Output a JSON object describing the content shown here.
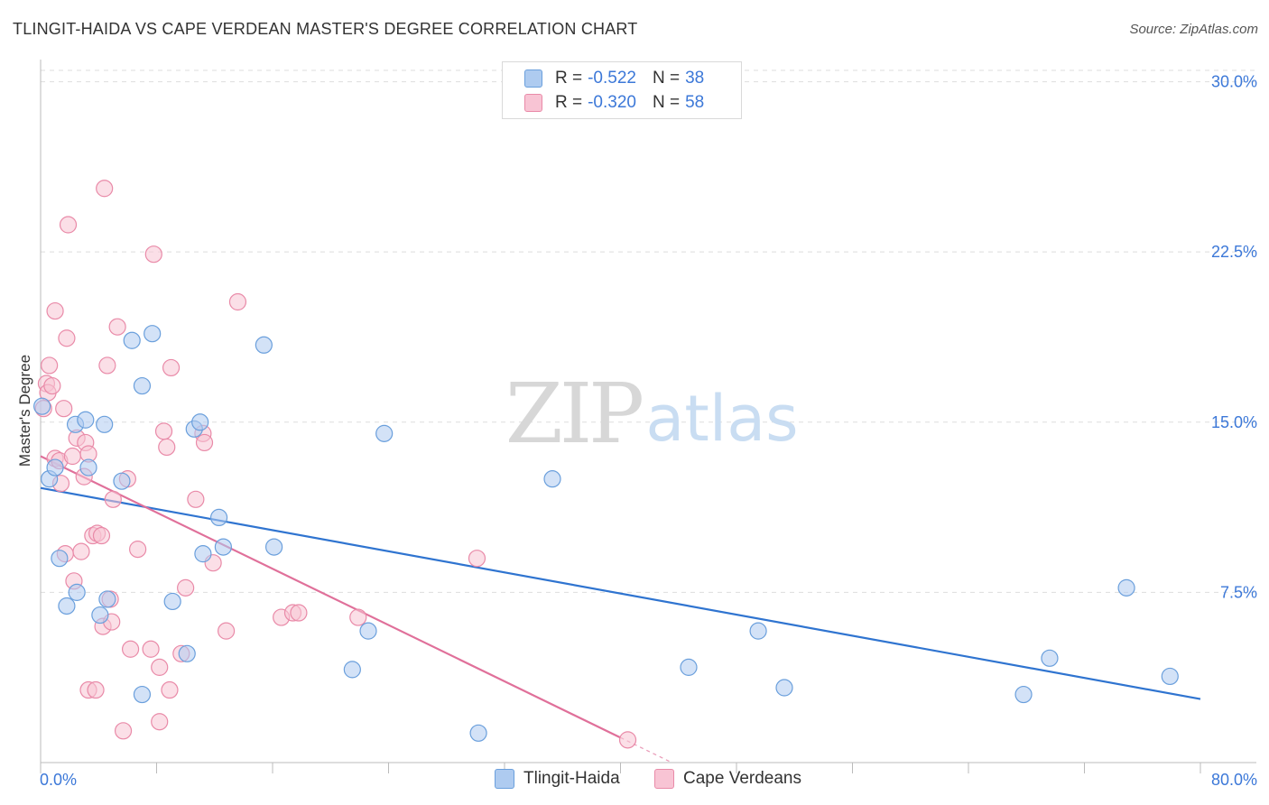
{
  "header": {
    "title": "TLINGIT-HAIDA VS CAPE VERDEAN MASTER'S DEGREE CORRELATION CHART",
    "source": "Source: ZipAtlas.com"
  },
  "watermark": {
    "zip": "ZIP",
    "atlas": "atlas"
  },
  "legend_top": {
    "rows": [
      {
        "r_label": "R =",
        "r_value": "-0.522",
        "n_label": "N =",
        "n_value": "38"
      },
      {
        "r_label": "R =",
        "r_value": "-0.320",
        "n_label": "N =",
        "n_value": "58"
      }
    ]
  },
  "legend_bottom": {
    "items": [
      {
        "label": "Tlingit-Haida"
      },
      {
        "label": "Cape Verdeans"
      }
    ]
  },
  "colors": {
    "blue_fill": "#aecbf0",
    "blue_stroke": "#6a9fdc",
    "blue_line": "#2f74d0",
    "pink_fill": "#f8c4d4",
    "pink_stroke": "#e98aa8",
    "pink_line": "#e0709a",
    "tick_label": "#3c78d8",
    "grid": "#dddddd"
  },
  "chart_data": {
    "type": "scatter",
    "title": "TLINGIT-HAIDA VS CAPE VERDEAN MASTER'S DEGREE CORRELATION CHART",
    "xlabel": "",
    "ylabel": "Master's Degree",
    "xlim": [
      0,
      80
    ],
    "ylim": [
      0,
      30.5
    ],
    "x_tick_labels": [
      "0.0%",
      "80.0%"
    ],
    "y_ticks": [
      7.5,
      15.0,
      22.5,
      30.0
    ],
    "y_tick_labels": [
      "7.5%",
      "15.0%",
      "22.5%",
      "30.0%"
    ],
    "grid": true,
    "legend_position": "top-center",
    "series": [
      {
        "name": "Tlingit-Haida",
        "color": "#aecbf0",
        "points": [
          [
            0.1,
            15.7
          ],
          [
            0.6,
            12.5
          ],
          [
            1.0,
            13.0
          ],
          [
            1.3,
            9.0
          ],
          [
            1.8,
            6.9
          ],
          [
            2.4,
            14.9
          ],
          [
            2.5,
            7.5
          ],
          [
            3.1,
            15.1
          ],
          [
            3.3,
            13.0
          ],
          [
            4.1,
            6.5
          ],
          [
            4.4,
            14.9
          ],
          [
            4.6,
            7.2
          ],
          [
            5.6,
            12.4
          ],
          [
            6.3,
            18.6
          ],
          [
            7.0,
            3.0
          ],
          [
            7.0,
            16.6
          ],
          [
            7.7,
            18.9
          ],
          [
            9.1,
            7.1
          ],
          [
            10.1,
            4.8
          ],
          [
            10.6,
            14.7
          ],
          [
            11.0,
            15.0
          ],
          [
            11.2,
            9.2
          ],
          [
            12.3,
            10.8
          ],
          [
            12.6,
            9.5
          ],
          [
            15.4,
            18.4
          ],
          [
            16.1,
            9.5
          ],
          [
            21.5,
            4.1
          ],
          [
            22.6,
            5.8
          ],
          [
            23.7,
            14.5
          ],
          [
            30.2,
            1.3
          ],
          [
            35.3,
            12.5
          ],
          [
            44.7,
            4.2
          ],
          [
            49.5,
            5.8
          ],
          [
            51.3,
            3.3
          ],
          [
            67.8,
            3.0
          ],
          [
            69.6,
            4.6
          ],
          [
            74.9,
            7.7
          ],
          [
            77.9,
            3.8
          ]
        ]
      },
      {
        "name": "Cape Verdeans",
        "color": "#f8c4d4",
        "points": [
          [
            0.2,
            15.6
          ],
          [
            0.4,
            16.7
          ],
          [
            0.5,
            16.3
          ],
          [
            0.6,
            17.5
          ],
          [
            0.8,
            16.6
          ],
          [
            1.0,
            13.4
          ],
          [
            1.0,
            19.9
          ],
          [
            1.3,
            13.3
          ],
          [
            1.4,
            12.3
          ],
          [
            1.6,
            15.6
          ],
          [
            1.7,
            9.2
          ],
          [
            1.8,
            18.7
          ],
          [
            1.9,
            23.7
          ],
          [
            2.2,
            13.5
          ],
          [
            2.3,
            8.0
          ],
          [
            2.5,
            14.3
          ],
          [
            2.8,
            9.3
          ],
          [
            3.0,
            12.6
          ],
          [
            3.1,
            14.1
          ],
          [
            3.3,
            3.2
          ],
          [
            3.3,
            13.6
          ],
          [
            3.6,
            10.0
          ],
          [
            3.8,
            3.2
          ],
          [
            3.9,
            10.1
          ],
          [
            4.2,
            10.0
          ],
          [
            4.3,
            6.0
          ],
          [
            4.4,
            25.3
          ],
          [
            4.6,
            17.5
          ],
          [
            4.8,
            7.2
          ],
          [
            4.9,
            6.2
          ],
          [
            5.0,
            11.6
          ],
          [
            5.3,
            19.2
          ],
          [
            5.7,
            1.4
          ],
          [
            6.0,
            12.5
          ],
          [
            6.2,
            5.0
          ],
          [
            6.7,
            9.4
          ],
          [
            7.6,
            5.0
          ],
          [
            7.8,
            22.4
          ],
          [
            8.2,
            1.8
          ],
          [
            8.2,
            4.2
          ],
          [
            8.5,
            14.6
          ],
          [
            8.7,
            13.9
          ],
          [
            8.9,
            3.2
          ],
          [
            9.0,
            17.4
          ],
          [
            9.7,
            4.8
          ],
          [
            10.0,
            7.7
          ],
          [
            10.7,
            11.6
          ],
          [
            11.2,
            14.5
          ],
          [
            11.3,
            14.1
          ],
          [
            11.9,
            8.8
          ],
          [
            12.8,
            5.8
          ],
          [
            13.6,
            20.3
          ],
          [
            16.6,
            6.4
          ],
          [
            17.4,
            6.6
          ],
          [
            17.8,
            6.6
          ],
          [
            21.9,
            6.4
          ],
          [
            30.1,
            9.0
          ],
          [
            40.5,
            1.0
          ]
        ]
      }
    ],
    "trendlines": [
      {
        "series": "Tlingit-Haida",
        "x": [
          0,
          80
        ],
        "y": [
          12.1,
          2.8
        ],
        "dashed_x": []
      },
      {
        "series": "Cape Verdeans",
        "x": [
          0,
          40
        ],
        "y": [
          13.5,
          1.1
        ],
        "dashed_x": [
          40,
          43.5
        ]
      }
    ]
  }
}
